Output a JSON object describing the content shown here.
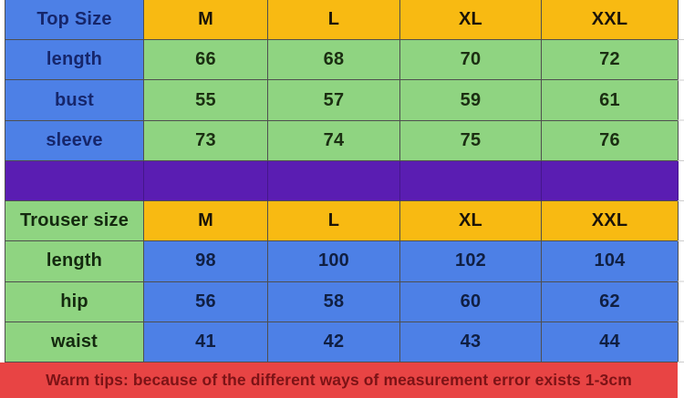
{
  "chart_data": [
    {
      "type": "table",
      "title": "Top Size",
      "columns": [
        "Top Size",
        "M",
        "L",
        "XL",
        "XXL"
      ],
      "rows": [
        [
          "length",
          66,
          68,
          70,
          72
        ],
        [
          "bust",
          55,
          57,
          59,
          61
        ],
        [
          "sleeve",
          73,
          74,
          75,
          76
        ]
      ],
      "layout_hint": "row labels on blue cells, values on green cells, size headers on orange cells"
    },
    {
      "type": "table",
      "title": "Trouser size",
      "columns": [
        "Trouser size",
        "M",
        "L",
        "XL",
        "XXL"
      ],
      "rows": [
        [
          "length",
          98,
          100,
          102,
          104
        ],
        [
          "hip",
          56,
          58,
          60,
          62
        ],
        [
          "waist",
          41,
          42,
          43,
          44
        ]
      ],
      "layout_hint": "row labels on green cells, values on blue cells, size headers on orange cells"
    }
  ],
  "footer": {
    "warm_tips": "Warm tips: because of the different ways of measurement error exists 1-3cm"
  },
  "colors": {
    "blue_cell": "#4d80e6",
    "green_cell": "#8fd481",
    "orange_header": "#f8ba12",
    "purple_divider": "#5a1db2",
    "red_banner": "#e84444",
    "navy_text": "#16266b",
    "dark_red_text": "#7c1316",
    "grid_border": "#4f4f4f"
  }
}
